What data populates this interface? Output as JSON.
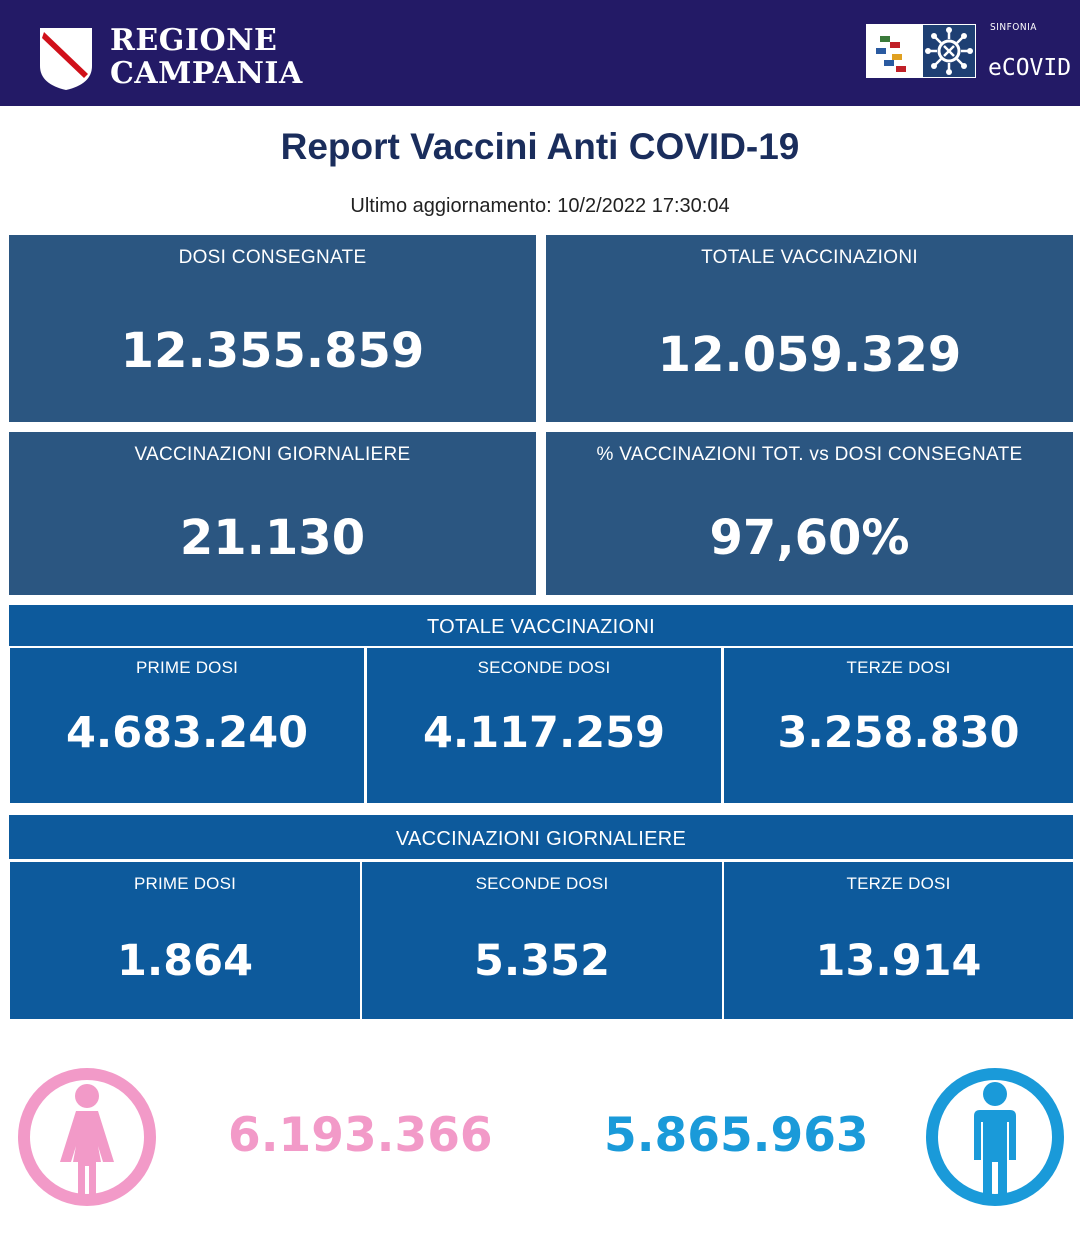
{
  "header": {
    "region_line1": "REGIONE",
    "region_line2": "CAMPANIA",
    "brand_small": "SINFONIA",
    "brand_big": "eCOVID",
    "bg_color": "#231a66"
  },
  "report": {
    "title": "Report Vaccini Anti COVID-19",
    "updated": "Ultimo aggiornamento: 10/2/2022  17:30:04"
  },
  "cards": [
    {
      "label": "DOSI  CONSEGNATE",
      "value": "12.355.859"
    },
    {
      "label": "TOTALE VACCINAZIONI",
      "value": "12.059.329"
    },
    {
      "label": "VACCINAZIONI GIORNALIERE",
      "value": "21.130"
    },
    {
      "label": "% VACCINAZIONI TOT. vs DOSI CONSEGNATE",
      "value": "97,60%"
    }
  ],
  "totale": {
    "title": "TOTALE VACCINAZIONI",
    "cells": [
      {
        "label": "PRIME DOSI",
        "value": "4.683.240"
      },
      {
        "label": "SECONDE DOSI",
        "value": "4.117.259"
      },
      {
        "label": "TERZE DOSI",
        "value": "3.258.830"
      }
    ]
  },
  "giornaliere": {
    "title": "VACCINAZIONI GIORNALIERE",
    "cells": [
      {
        "label": "PRIME DOSI",
        "value": "1.864"
      },
      {
        "label": "SECONDE DOSI",
        "value": "5.352"
      },
      {
        "label": "TERZE DOSI",
        "value": "13.914"
      }
    ]
  },
  "gender": {
    "female": {
      "value": "6.193.366",
      "icon": "female-person-icon",
      "color": "#f29ac8"
    },
    "male": {
      "value": "5.865.963",
      "icon": "male-person-icon",
      "color": "#1a9ad9"
    }
  },
  "colors": {
    "card_bg": "#2b5681",
    "band_bg": "#0d5a9c",
    "title_color": "#1a2d5c"
  }
}
